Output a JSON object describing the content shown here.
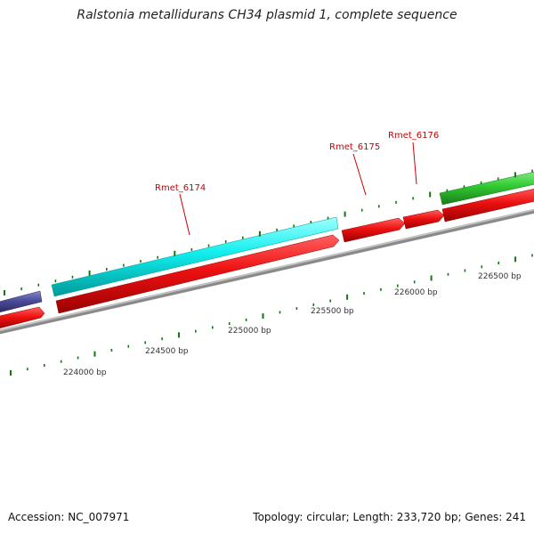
{
  "title": "Ralstonia metallidurans CH34 plasmid 1, complete sequence",
  "footer": {
    "accession": "Accession: NC_007971",
    "summary": "Topology: circular; Length: 233,720 bp; Genes: 241"
  },
  "colors": {
    "backbone": "#8a8a8a",
    "gene_red": "#ee1111",
    "gene_cyan": "#11eeee",
    "gene_green": "#33cc33",
    "gene_purple": "#4a4a9a",
    "tick_green": "#117711",
    "label_red": "#cc0000"
  },
  "scale_labels": [
    "224000 bp",
    "224500 bp",
    "225000 bp",
    "225500 bp",
    "226000 bp",
    "226500 bp"
  ],
  "gene_labels": [
    "Rmet_6174",
    "Rmet_6175",
    "Rmet_6176"
  ]
}
